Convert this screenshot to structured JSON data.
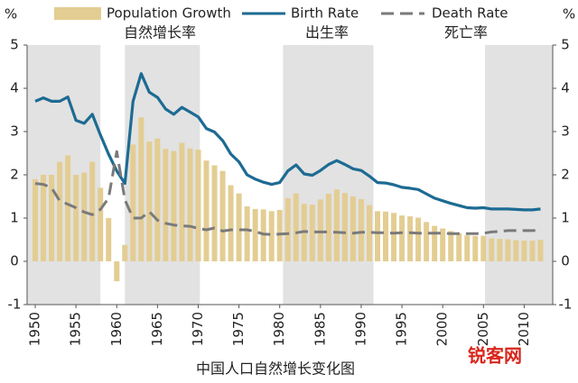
{
  "chart_data": {
    "type": "bar_line",
    "caption": "中国人口自然增长变化图",
    "y_label": "%",
    "watermark": "锐客网",
    "xlim": [
      1949,
      2013.5
    ],
    "xticks": [
      1950,
      1955,
      1960,
      1965,
      1970,
      1975,
      1980,
      1985,
      1990,
      1995,
      2000,
      2005,
      2010
    ],
    "ylim": [
      -1,
      5
    ],
    "yticks": [
      -1,
      0,
      1,
      2,
      3,
      4,
      5
    ],
    "shaded_spans": [
      [
        1949,
        1958
      ],
      [
        1961,
        1970.2
      ],
      [
        1980.4,
        1991.5
      ],
      [
        2005.2,
        2013.5
      ]
    ],
    "shade_color": "#e2e2e2",
    "x": [
      1950,
      1951,
      1952,
      1953,
      1954,
      1955,
      1956,
      1957,
      1958,
      1959,
      1960,
      1961,
      1962,
      1963,
      1964,
      1965,
      1966,
      1967,
      1968,
      1969,
      1970,
      1971,
      1972,
      1973,
      1974,
      1975,
      1976,
      1977,
      1978,
      1979,
      1980,
      1981,
      1982,
      1983,
      1984,
      1985,
      1986,
      1987,
      1988,
      1989,
      1990,
      1991,
      1992,
      1993,
      1994,
      1995,
      1996,
      1997,
      1998,
      1999,
      2000,
      2001,
      2002,
      2003,
      2004,
      2005,
      2006,
      2007,
      2008,
      2009,
      2010,
      2011,
      2012
    ],
    "series": [
      {
        "name": "Population Growth",
        "name_cn": "自然增长率",
        "kind": "bar",
        "color": "#e3cd92",
        "values": [
          1.9,
          2.0,
          2.0,
          2.3,
          2.45,
          2.0,
          2.05,
          2.3,
          1.7,
          1.0,
          -0.46,
          0.38,
          2.7,
          3.33,
          2.77,
          2.84,
          2.6,
          2.55,
          2.74,
          2.61,
          2.58,
          2.33,
          2.22,
          2.09,
          1.76,
          1.57,
          1.27,
          1.21,
          1.2,
          1.16,
          1.19,
          1.46,
          1.57,
          1.33,
          1.31,
          1.43,
          1.56,
          1.66,
          1.58,
          1.5,
          1.44,
          1.3,
          1.16,
          1.15,
          1.12,
          1.06,
          1.04,
          1.01,
          0.91,
          0.82,
          0.76,
          0.7,
          0.65,
          0.6,
          0.59,
          0.59,
          0.53,
          0.52,
          0.51,
          0.49,
          0.48,
          0.48,
          0.5
        ]
      },
      {
        "name": "Birth Rate",
        "name_cn": "出生率",
        "kind": "line",
        "color": "#1d6b93",
        "values": [
          3.7,
          3.78,
          3.7,
          3.7,
          3.8,
          3.26,
          3.19,
          3.4,
          2.92,
          2.48,
          2.09,
          1.8,
          3.7,
          4.34,
          3.91,
          3.79,
          3.52,
          3.4,
          3.56,
          3.45,
          3.34,
          3.07,
          2.99,
          2.79,
          2.48,
          2.3,
          2.0,
          1.9,
          1.83,
          1.78,
          1.82,
          2.09,
          2.23,
          2.02,
          1.99,
          2.1,
          2.24,
          2.33,
          2.24,
          2.14,
          2.1,
          1.97,
          1.82,
          1.81,
          1.77,
          1.71,
          1.69,
          1.66,
          1.56,
          1.46,
          1.4,
          1.34,
          1.29,
          1.24,
          1.23,
          1.24,
          1.21,
          1.21,
          1.21,
          1.2,
          1.19,
          1.19,
          1.21
        ]
      },
      {
        "name": "Death Rate",
        "name_cn": "死亡率",
        "kind": "dashed",
        "color": "#7a7a7a",
        "values": [
          1.8,
          1.78,
          1.7,
          1.4,
          1.32,
          1.24,
          1.14,
          1.08,
          1.2,
          1.46,
          2.54,
          1.42,
          1.0,
          1.0,
          1.15,
          0.95,
          0.88,
          0.84,
          0.82,
          0.81,
          0.76,
          0.73,
          0.77,
          0.7,
          0.73,
          0.73,
          0.73,
          0.69,
          0.63,
          0.62,
          0.63,
          0.64,
          0.66,
          0.69,
          0.68,
          0.68,
          0.68,
          0.67,
          0.66,
          0.65,
          0.67,
          0.67,
          0.66,
          0.66,
          0.65,
          0.66,
          0.66,
          0.65,
          0.65,
          0.65,
          0.65,
          0.64,
          0.64,
          0.64,
          0.64,
          0.65,
          0.68,
          0.69,
          0.71,
          0.71,
          0.71,
          0.71,
          0.72
        ]
      }
    ]
  }
}
